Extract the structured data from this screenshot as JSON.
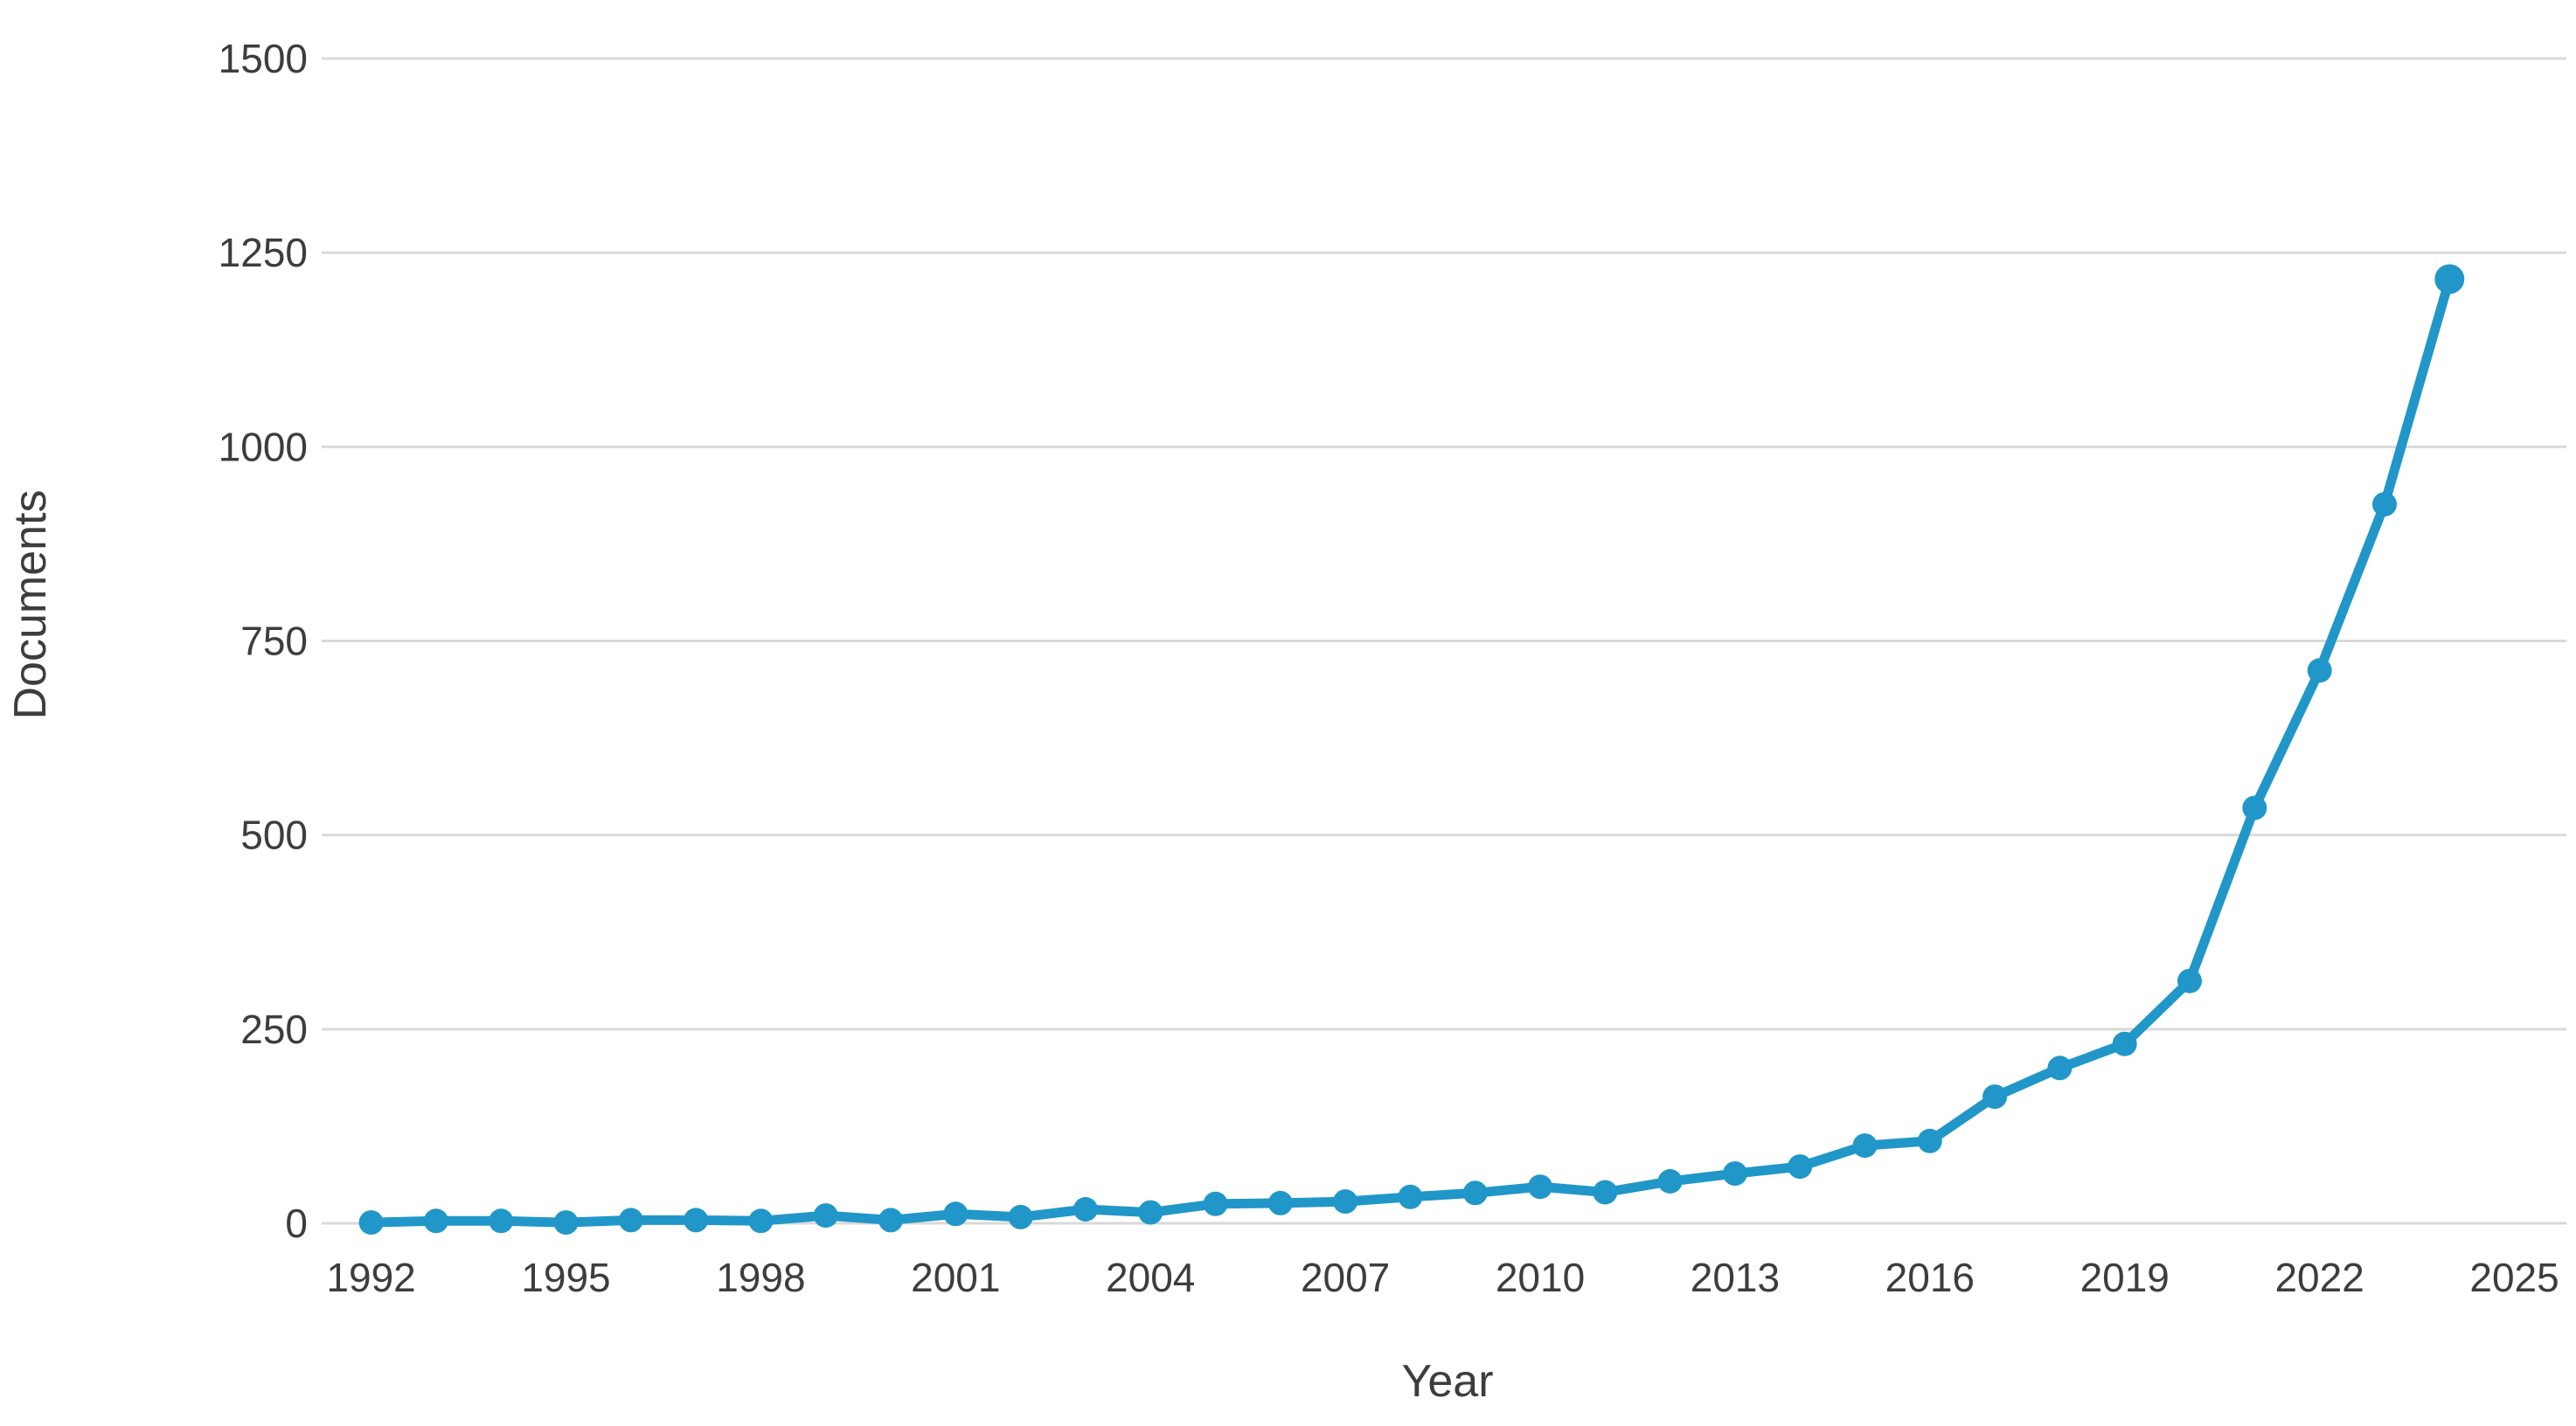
{
  "chart_data": {
    "type": "line",
    "title": "",
    "xlabel": "Year",
    "ylabel": "Documents",
    "x": [
      1992,
      1993,
      1994,
      1995,
      1996,
      1997,
      1998,
      1999,
      2000,
      2001,
      2002,
      2003,
      2004,
      2005,
      2006,
      2007,
      2008,
      2009,
      2010,
      2011,
      2012,
      2013,
      2014,
      2015,
      2016,
      2017,
      2018,
      2019,
      2020,
      2021,
      2022,
      2023,
      2024
    ],
    "series": [
      {
        "name": "Documents",
        "values": [
          1,
          3,
          3,
          1,
          4,
          4,
          3,
          10,
          4,
          12,
          8,
          18,
          14,
          25,
          26,
          28,
          34,
          39,
          47,
          40,
          54,
          64,
          73,
          100,
          106,
          163,
          200,
          231,
          312,
          535,
          712,
          926,
          1216
        ]
      }
    ],
    "x_tick_labels": [
      "1992",
      "1995",
      "1998",
      "2001",
      "2004",
      "2007",
      "2010",
      "2013",
      "2016",
      "2019",
      "2022",
      "2025"
    ],
    "x_tick_values": [
      1992,
      1995,
      1998,
      2001,
      2004,
      2007,
      2010,
      2013,
      2016,
      2019,
      2022,
      2025
    ],
    "y_tick_labels": [
      "0",
      "250",
      "500",
      "750",
      "1000",
      "1250",
      "1500"
    ],
    "y_tick_values": [
      0,
      250,
      500,
      750,
      1000,
      1250,
      1500
    ],
    "xlim": [
      1991.4,
      2025.8
    ],
    "ylim": [
      0,
      1500
    ],
    "grid": "horizontal-only",
    "legend_position": "none",
    "line_color": "#2097c8",
    "grid_color": "#d9d9d9",
    "text_color": "#3d3c3e",
    "background_color": "#ffffff",
    "marker": "circle"
  }
}
